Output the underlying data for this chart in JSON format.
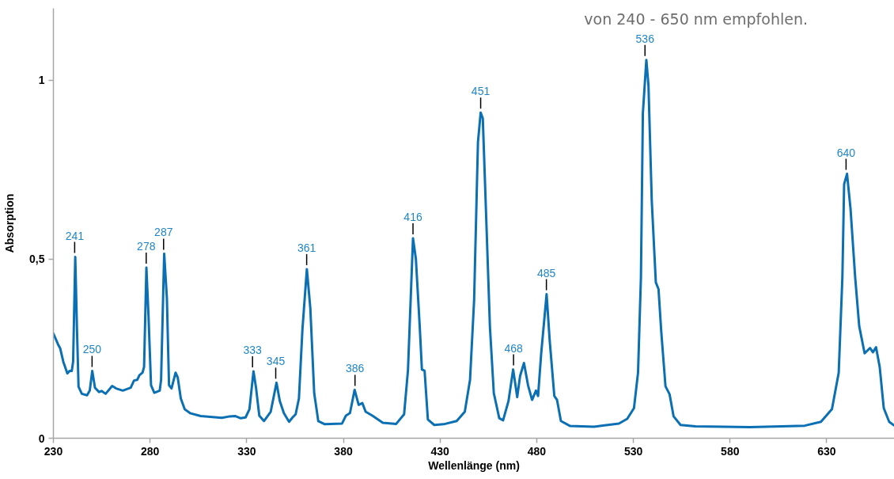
{
  "chart_data": {
    "type": "line",
    "xlabel": "Wellenlänge (nm)",
    "ylabel": "Absorption",
    "xlim": [
      230,
      665
    ],
    "ylim": [
      0,
      1.2
    ],
    "xticks": [
      230,
      280,
      330,
      380,
      430,
      480,
      530,
      580,
      630
    ],
    "yticks": [
      0,
      {
        "value": 0.5,
        "label": "0,5"
      },
      1
    ],
    "color": "#0b6fb3",
    "x": [
      230.0,
      232.4,
      233.5,
      235.1,
      237.2,
      238.5,
      239.5,
      240.2,
      241.3,
      242.2,
      243.0,
      244.7,
      247.4,
      248.8,
      250.1,
      251.5,
      253.6,
      254.9,
      257.0,
      260.4,
      262.4,
      265.9,
      270.0,
      271.7,
      273.4,
      274.5,
      276.1,
      276.9,
      278.1,
      279.2,
      280.5,
      282.2,
      285.0,
      285.7,
      287.3,
      288.7,
      289.8,
      291.1,
      293.2,
      294.3,
      295.9,
      297.9,
      300.7,
      306.2,
      317.1,
      321.2,
      323.9,
      326.7,
      329.4,
      331.4,
      333.5,
      334.8,
      336.5,
      338.9,
      342.4,
      345.4,
      347.1,
      349.2,
      351.9,
      353.7,
      355.3,
      357.0,
      358.8,
      361.1,
      362.9,
      364.9,
      367.0,
      370.4,
      379.3,
      381.3,
      383.4,
      385.8,
      387.9,
      389.8,
      391.5,
      395.0,
      400.4,
      407.3,
      411.4,
      413.4,
      416.0,
      417.5,
      419.5,
      420.6,
      422.0,
      423.7,
      427.0,
      431.8,
      438.6,
      442.8,
      445.5,
      447.6,
      449.6,
      451.0,
      452.1,
      453.7,
      455.8,
      457.8,
      460.6,
      462.6,
      465.4,
      467.8,
      469.9,
      471.4,
      473.4,
      475.5,
      477.6,
      479.6,
      480.7,
      482.3,
      485.1,
      486.7,
      489.1,
      490.5,
      492.5,
      497.3,
      509.6,
      522.5,
      526.8,
      530.3,
      532.4,
      533.9,
      534.9,
      536.7,
      537.8,
      539.5,
      541.6,
      543.0,
      544.4,
      546.6,
      548.7,
      550.8,
      554.4,
      562.1,
      590.4,
      618.6,
      627.0,
      632.7,
      636.2,
      638.1,
      639.0,
      640.5,
      642.3,
      644.7,
      646.8,
      649.6,
      652.4,
      653.9,
      655.5,
      657.4,
      659.5,
      662.3,
      665.0
    ],
    "values": [
      0.292,
      0.262,
      0.251,
      0.214,
      0.181,
      0.188,
      0.188,
      0.214,
      0.506,
      0.303,
      0.144,
      0.124,
      0.12,
      0.133,
      0.188,
      0.141,
      0.129,
      0.132,
      0.124,
      0.146,
      0.139,
      0.133,
      0.141,
      0.161,
      0.163,
      0.176,
      0.183,
      0.199,
      0.476,
      0.34,
      0.148,
      0.127,
      0.133,
      0.163,
      0.515,
      0.391,
      0.148,
      0.139,
      0.183,
      0.17,
      0.111,
      0.081,
      0.07,
      0.062,
      0.057,
      0.061,
      0.062,
      0.056,
      0.058,
      0.081,
      0.187,
      0.141,
      0.063,
      0.048,
      0.074,
      0.155,
      0.104,
      0.07,
      0.046,
      0.058,
      0.067,
      0.111,
      0.303,
      0.472,
      0.362,
      0.126,
      0.048,
      0.039,
      0.041,
      0.063,
      0.07,
      0.135,
      0.093,
      0.098,
      0.074,
      0.063,
      0.043,
      0.04,
      0.067,
      0.19,
      0.558,
      0.5,
      0.31,
      0.192,
      0.188,
      0.052,
      0.037,
      0.039,
      0.048,
      0.074,
      0.163,
      0.384,
      0.826,
      0.909,
      0.893,
      0.642,
      0.31,
      0.126,
      0.056,
      0.05,
      0.104,
      0.192,
      0.115,
      0.174,
      0.21,
      0.148,
      0.107,
      0.133,
      0.118,
      0.236,
      0.402,
      0.273,
      0.118,
      0.107,
      0.048,
      0.034,
      0.032,
      0.041,
      0.054,
      0.084,
      0.183,
      0.45,
      0.907,
      1.056,
      0.984,
      0.663,
      0.435,
      0.416,
      0.298,
      0.145,
      0.123,
      0.061,
      0.037,
      0.033,
      0.031,
      0.035,
      0.046,
      0.081,
      0.183,
      0.45,
      0.709,
      0.738,
      0.641,
      0.45,
      0.313,
      0.237,
      0.252,
      0.24,
      0.254,
      0.199,
      0.084,
      0.046,
      0.035
    ],
    "annotations": [
      {
        "text": "241",
        "x": 241,
        "y": 0.506
      },
      {
        "text": "250",
        "x": 250,
        "y": 0.188
      },
      {
        "text": "278",
        "x": 278,
        "y": 0.476
      },
      {
        "text": "287",
        "x": 287,
        "y": 0.515
      },
      {
        "text": "333",
        "x": 333,
        "y": 0.187
      },
      {
        "text": "345",
        "x": 345,
        "y": 0.155
      },
      {
        "text": "361",
        "x": 361,
        "y": 0.472
      },
      {
        "text": "386",
        "x": 386,
        "y": 0.135
      },
      {
        "text": "416",
        "x": 416,
        "y": 0.558
      },
      {
        "text": "451",
        "x": 451,
        "y": 0.909
      },
      {
        "text": "468",
        "x": 468,
        "y": 0.192
      },
      {
        "text": "485",
        "x": 485,
        "y": 0.402
      },
      {
        "text": "536",
        "x": 536,
        "y": 1.056
      },
      {
        "text": "640",
        "x": 640,
        "y": 0.738
      },
      "von 240 - 650 nm empfohlen."
    ]
  }
}
